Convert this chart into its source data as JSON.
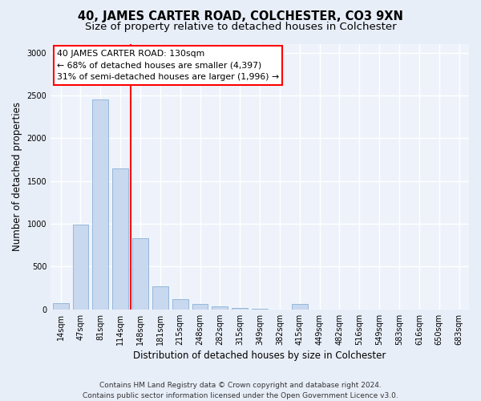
{
  "title": "40, JAMES CARTER ROAD, COLCHESTER, CO3 9XN",
  "subtitle": "Size of property relative to detached houses in Colchester",
  "xlabel": "Distribution of detached houses by size in Colchester",
  "ylabel": "Number of detached properties",
  "categories": [
    "14sqm",
    "47sqm",
    "81sqm",
    "114sqm",
    "148sqm",
    "181sqm",
    "215sqm",
    "248sqm",
    "282sqm",
    "315sqm",
    "349sqm",
    "382sqm",
    "415sqm",
    "449sqm",
    "482sqm",
    "516sqm",
    "549sqm",
    "583sqm",
    "616sqm",
    "650sqm",
    "683sqm"
  ],
  "values": [
    70,
    990,
    2450,
    1650,
    830,
    270,
    120,
    60,
    40,
    15,
    10,
    0,
    60,
    0,
    0,
    0,
    0,
    0,
    0,
    0,
    0
  ],
  "bar_color": "#c8d8ee",
  "bar_edge_color": "#8ab0d8",
  "vline_x_pos": 3.5,
  "vline_color": "red",
  "annotation_text": "40 JAMES CARTER ROAD: 130sqm\n← 68% of detached houses are smaller (4,397)\n31% of semi-detached houses are larger (1,996) →",
  "annotation_box_color": "white",
  "annotation_box_edge_color": "red",
  "ylim": [
    0,
    3100
  ],
  "yticks": [
    0,
    500,
    1000,
    1500,
    2000,
    2500,
    3000
  ],
  "footer": "Contains HM Land Registry data © Crown copyright and database right 2024.\nContains public sector information licensed under the Open Government Licence v3.0.",
  "bg_color": "#e8eef8",
  "plot_bg_color": "#eef3fb",
  "grid_color": "#ffffff",
  "title_fontsize": 10.5,
  "subtitle_fontsize": 9.5,
  "axis_label_fontsize": 8.5,
  "tick_fontsize": 7,
  "footer_fontsize": 6.5,
  "annotation_fontsize": 7.8
}
